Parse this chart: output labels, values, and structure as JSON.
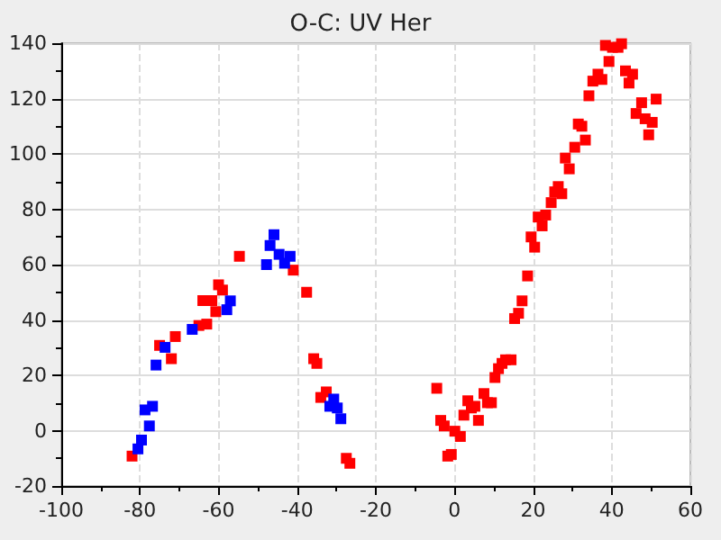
{
  "chart_data": {
    "type": "scatter",
    "title": "O-C: UV Her",
    "marker": "square",
    "grid": true,
    "xlim": [
      -100,
      60
    ],
    "xticks": [
      -100,
      -80,
      -60,
      -40,
      -20,
      0,
      20,
      40,
      60
    ],
    "ylim": [
      -20,
      140
    ],
    "yticks": [
      -20,
      0,
      20,
      40,
      60,
      80,
      100,
      120,
      140
    ],
    "series": [
      {
        "color": "#ff0000",
        "x": [
          -82,
          -75,
          -72,
          -71,
          -65,
          -63,
          -64,
          -61.7,
          -60.7,
          -60,
          -59,
          -54.7,
          -41,
          -37.6,
          -35.8,
          -35,
          -34,
          -32.6,
          -27.5,
          -26.6,
          -4.5,
          -3.5,
          -2.6,
          -1.7,
          -0.8,
          0.1,
          1.5,
          2.4,
          3.4,
          4.3,
          5.2,
          6.1,
          7.5,
          8.4,
          9.4,
          10.3,
          11.2,
          12.1,
          13,
          14.4,
          15.3,
          16.3,
          17.2,
          18.6,
          19.5,
          20.4,
          21.3,
          22.3,
          23.2,
          24.6,
          25.5,
          26.4,
          27.3,
          28.2,
          29.2,
          30.6,
          31.5,
          32.4,
          33.3,
          34.2,
          35.2,
          36.5,
          37.5,
          38.4,
          39.3,
          40.2,
          41.6,
          42.5,
          43.5,
          44.4,
          45.3,
          46.2,
          47.6,
          48.5,
          49.4,
          50.3,
          51.3
        ],
        "values": [
          -9.2,
          30.8,
          26,
          34,
          38,
          38.5,
          47,
          47,
          43,
          52.7,
          50.8,
          63,
          58,
          50,
          26,
          24.3,
          12,
          14,
          -10,
          -11.8,
          15.3,
          3.7,
          1.7,
          -9.2,
          -8.6,
          -0.2,
          -2.1,
          5.6,
          10.8,
          8.2,
          8.8,
          3.7,
          13.4,
          10.1,
          10.1,
          19.2,
          22.4,
          24.3,
          25.6,
          25.6,
          40.5,
          42.4,
          46.9,
          55.9,
          70,
          66.3,
          77.2,
          74,
          77.9,
          82.4,
          86.3,
          88.2,
          85.6,
          98.5,
          94.6,
          102.4,
          110.8,
          110,
          105,
          121,
          126.3,
          128.8,
          126.9,
          139.2,
          133.4,
          138.5,
          138.5,
          139.8,
          130,
          125.6,
          128.8,
          114.6,
          118.5,
          112.7,
          106.9,
          111.4,
          119.8
        ]
      },
      {
        "color": "#0000ff",
        "x": [
          -80.5,
          -79.6,
          -78.7,
          -77.6,
          -76.8,
          -75.9,
          -73.6,
          -66.7,
          -57.9,
          -57,
          -47.8,
          -46.9,
          -45.9,
          -44.6,
          -43.2,
          -41.8,
          -31.7,
          -30.7,
          -29.8,
          -28.9
        ],
        "values": [
          -6.6,
          -3.4,
          7.5,
          1.7,
          8.8,
          23.7,
          30.1,
          36.6,
          43.7,
          46.9,
          60,
          66.9,
          70.8,
          63.7,
          60.5,
          63,
          8.8,
          11.4,
          8.2,
          4.3
        ]
      }
    ]
  }
}
